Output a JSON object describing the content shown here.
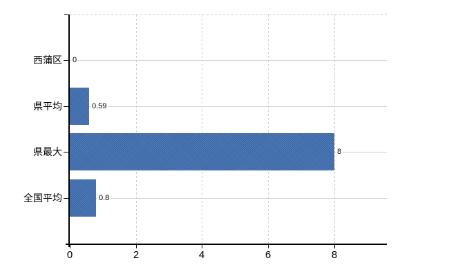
{
  "chart_data": {
    "type": "bar",
    "orientation": "horizontal",
    "title": "",
    "xlabel": "",
    "ylabel": "",
    "categories": [
      "西蒲区",
      "県平均",
      "県最大",
      "全国平均"
    ],
    "values": [
      0,
      0.59,
      8,
      0.8
    ],
    "value_labels": [
      "0",
      "0.59",
      "8",
      "0.8"
    ],
    "x_tick_values": [
      0,
      2,
      4,
      6,
      8
    ],
    "x_tick_labels": [
      "0",
      "2",
      "4",
      "6",
      "8"
    ],
    "xlim": [
      0,
      9.6
    ],
    "grid": true,
    "legend": false,
    "colors": {
      "bar_fill": "#4470af",
      "bar_dither_dark": "#3b67a8",
      "bar_dither_light": "#4d7bba",
      "h_gridline": "#ccd3cc",
      "v_gridline": "#c9c9d1",
      "axis": "#000000",
      "text": "#000000",
      "background": "#ffffff"
    }
  }
}
